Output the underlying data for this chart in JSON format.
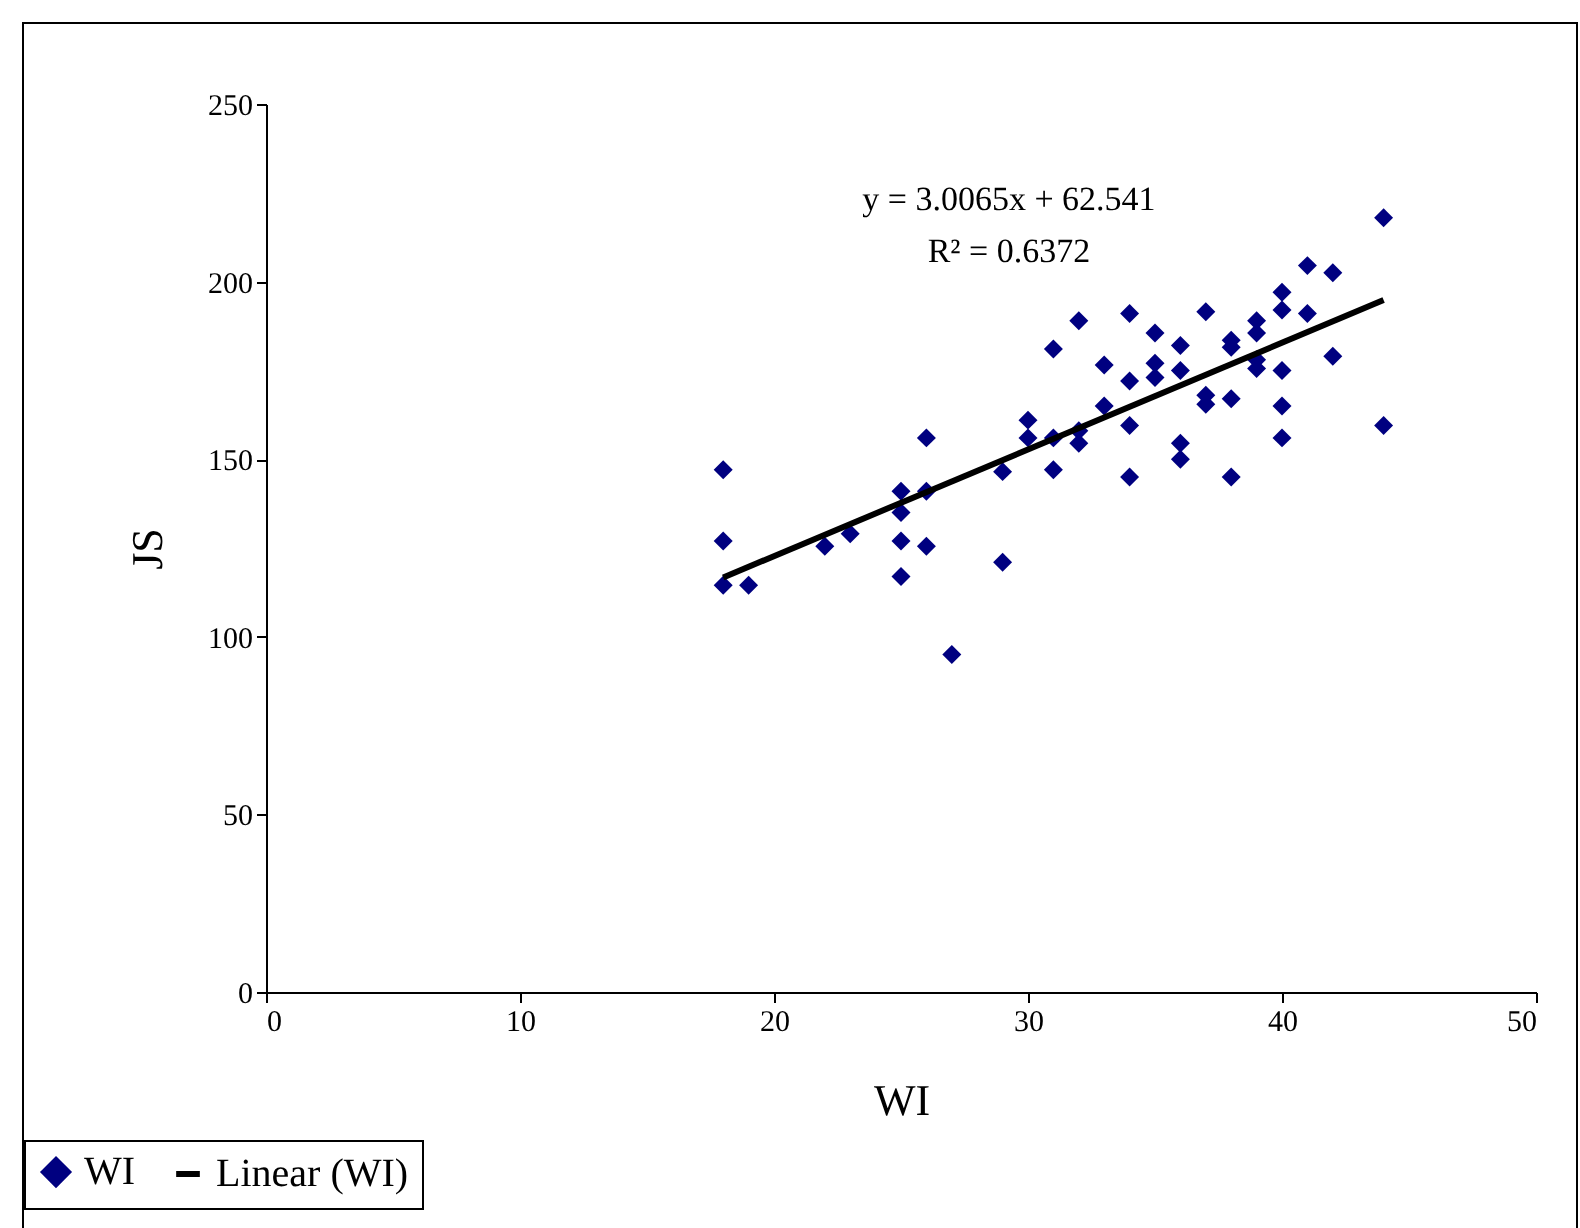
{
  "chart_data": {
    "type": "scatter",
    "xlabel": "WI",
    "ylabel": "JS",
    "xlim": [
      0,
      50
    ],
    "ylim": [
      0,
      250
    ],
    "xticks": [
      0,
      10,
      20,
      30,
      40,
      50
    ],
    "yticks": [
      0,
      50,
      100,
      150,
      200,
      250
    ],
    "grid": false,
    "legend": "bottom left",
    "annotations": [
      "y = 3.0065x + 62.541",
      "R² = 0.6372"
    ],
    "series": [
      {
        "name": "WI",
        "color": "#000080",
        "marker": "diamond",
        "x": [
          18,
          18,
          18,
          19,
          22,
          23,
          25,
          25,
          25,
          25,
          26,
          26,
          26,
          27,
          29,
          29,
          30,
          30,
          31,
          31,
          31,
          32,
          32,
          32,
          33,
          33,
          34,
          34,
          34,
          34,
          35,
          35,
          35,
          36,
          36,
          36,
          36,
          37,
          37,
          37,
          38,
          38,
          38,
          38,
          39,
          39,
          39,
          39,
          40,
          40,
          40,
          40,
          40,
          41,
          41,
          42,
          42,
          44,
          44
        ],
        "values": [
          147,
          127,
          114.5,
          114.5,
          125.5,
          129,
          141,
          135,
          127,
          117,
          156,
          141,
          125.5,
          95,
          146.5,
          121,
          161,
          156,
          181,
          156,
          147,
          189,
          158,
          154.5,
          176.5,
          165,
          191,
          172,
          159.5,
          145,
          185.5,
          177,
          173,
          182,
          175,
          154.5,
          150,
          191.5,
          168,
          165.5,
          183.5,
          181.5,
          167,
          145,
          189,
          185.5,
          178,
          175.5,
          197,
          192,
          175,
          165,
          156,
          204.5,
          191,
          202.5,
          179,
          218,
          159.5
        ]
      },
      {
        "name": "Linear (WI)",
        "type": "line",
        "color": "#000000",
        "marker": "none",
        "line_style": "solid",
        "x": [
          18,
          44
        ],
        "values": [
          116.7,
          194.8
        ]
      }
    ]
  }
}
